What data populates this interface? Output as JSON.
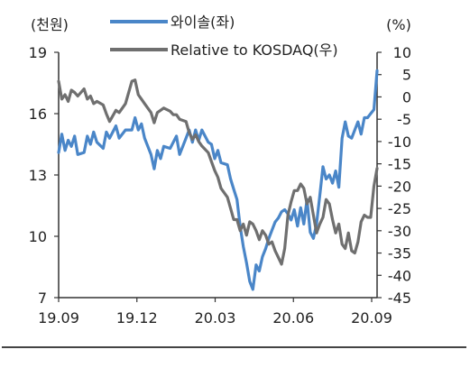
{
  "chart_data": {
    "type": "line",
    "left_unit": "(천원)",
    "right_unit": "(%)",
    "x_ticks": [
      "19.09",
      "19.12",
      "20.03",
      "20.06",
      "20.09"
    ],
    "y_left_ticks": [
      "7",
      "10",
      "13",
      "16",
      "19"
    ],
    "y_right_ticks": [
      "-45",
      "-40",
      "-35",
      "-30",
      "-25",
      "-20",
      "-15",
      "-10",
      "-5",
      "0",
      "5",
      "10"
    ],
    "ylim_left": [
      7,
      19
    ],
    "ylim_right": [
      -45,
      10
    ],
    "grid": false,
    "legend_position": "top",
    "series": [
      {
        "name": "와이솔(좌)",
        "axis": "left",
        "color": "#4a86c8",
        "points": [
          [
            0.0,
            14.1
          ],
          [
            0.01,
            15.0
          ],
          [
            0.02,
            14.2
          ],
          [
            0.03,
            14.7
          ],
          [
            0.04,
            14.4
          ],
          [
            0.05,
            14.9
          ],
          [
            0.06,
            14.0
          ],
          [
            0.08,
            14.1
          ],
          [
            0.09,
            14.9
          ],
          [
            0.1,
            14.5
          ],
          [
            0.11,
            15.1
          ],
          [
            0.12,
            14.6
          ],
          [
            0.14,
            14.3
          ],
          [
            0.15,
            15.1
          ],
          [
            0.16,
            14.8
          ],
          [
            0.18,
            15.4
          ],
          [
            0.19,
            14.8
          ],
          [
            0.21,
            15.2
          ],
          [
            0.23,
            15.2
          ],
          [
            0.24,
            15.8
          ],
          [
            0.25,
            15.2
          ],
          [
            0.26,
            15.5
          ],
          [
            0.27,
            14.8
          ],
          [
            0.29,
            14.0
          ],
          [
            0.3,
            13.3
          ],
          [
            0.31,
            14.2
          ],
          [
            0.32,
            13.8
          ],
          [
            0.33,
            14.4
          ],
          [
            0.35,
            14.3
          ],
          [
            0.36,
            14.6
          ],
          [
            0.37,
            14.9
          ],
          [
            0.38,
            14.0
          ],
          [
            0.4,
            14.8
          ],
          [
            0.41,
            15.2
          ],
          [
            0.42,
            14.6
          ],
          [
            0.43,
            15.2
          ],
          [
            0.44,
            14.7
          ],
          [
            0.45,
            15.2
          ],
          [
            0.47,
            14.6
          ],
          [
            0.48,
            14.5
          ],
          [
            0.49,
            13.8
          ],
          [
            0.5,
            14.2
          ],
          [
            0.51,
            13.6
          ],
          [
            0.53,
            13.5
          ],
          [
            0.54,
            12.8
          ],
          [
            0.55,
            12.3
          ],
          [
            0.56,
            11.8
          ],
          [
            0.57,
            10.5
          ],
          [
            0.58,
            9.5
          ],
          [
            0.59,
            8.7
          ],
          [
            0.6,
            7.8
          ],
          [
            0.61,
            7.4
          ],
          [
            0.62,
            8.6
          ],
          [
            0.63,
            8.3
          ],
          [
            0.64,
            9.0
          ],
          [
            0.65,
            9.4
          ],
          [
            0.66,
            9.9
          ],
          [
            0.67,
            10.3
          ],
          [
            0.68,
            10.7
          ],
          [
            0.69,
            10.9
          ],
          [
            0.7,
            11.2
          ],
          [
            0.71,
            11.3
          ],
          [
            0.72,
            11.1
          ],
          [
            0.73,
            10.8
          ],
          [
            0.74,
            11.3
          ],
          [
            0.75,
            10.5
          ],
          [
            0.76,
            11.4
          ],
          [
            0.77,
            10.6
          ],
          [
            0.78,
            11.8
          ],
          [
            0.79,
            10.2
          ],
          [
            0.8,
            9.9
          ],
          [
            0.81,
            10.6
          ],
          [
            0.82,
            12.0
          ],
          [
            0.83,
            13.4
          ],
          [
            0.84,
            12.8
          ],
          [
            0.85,
            13.0
          ],
          [
            0.86,
            12.6
          ],
          [
            0.87,
            13.2
          ],
          [
            0.88,
            12.4
          ],
          [
            0.89,
            14.8
          ],
          [
            0.9,
            15.6
          ],
          [
            0.91,
            14.9
          ],
          [
            0.92,
            14.8
          ],
          [
            0.93,
            15.2
          ],
          [
            0.94,
            15.6
          ],
          [
            0.95,
            15.0
          ],
          [
            0.96,
            15.8
          ],
          [
            0.97,
            15.8
          ],
          [
            0.98,
            16.0
          ],
          [
            0.99,
            16.2
          ],
          [
            1.0,
            18.1
          ]
        ]
      },
      {
        "name": "Relative to KOSDAQ(우)",
        "axis": "right",
        "color": "#6f6f6f",
        "points": [
          [
            0.0,
            3.5
          ],
          [
            0.01,
            -0.5
          ],
          [
            0.02,
            0.5
          ],
          [
            0.03,
            -1.0
          ],
          [
            0.04,
            1.5
          ],
          [
            0.05,
            1.0
          ],
          [
            0.06,
            0.2
          ],
          [
            0.08,
            1.8
          ],
          [
            0.09,
            -0.5
          ],
          [
            0.1,
            0.2
          ],
          [
            0.11,
            -1.5
          ],
          [
            0.12,
            -1.0
          ],
          [
            0.14,
            -1.8
          ],
          [
            0.15,
            -3.8
          ],
          [
            0.16,
            -5.5
          ],
          [
            0.18,
            -3.0
          ],
          [
            0.19,
            -3.5
          ],
          [
            0.21,
            -1.5
          ],
          [
            0.23,
            3.5
          ],
          [
            0.24,
            3.8
          ],
          [
            0.25,
            0.5
          ],
          [
            0.26,
            -0.5
          ],
          [
            0.27,
            -1.5
          ],
          [
            0.29,
            -3.5
          ],
          [
            0.3,
            -5.8
          ],
          [
            0.31,
            -3.5
          ],
          [
            0.32,
            -3.0
          ],
          [
            0.33,
            -2.5
          ],
          [
            0.35,
            -3.2
          ],
          [
            0.36,
            -4.0
          ],
          [
            0.37,
            -4.0
          ],
          [
            0.38,
            -5.0
          ],
          [
            0.4,
            -5.5
          ],
          [
            0.41,
            -8.0
          ],
          [
            0.42,
            -9.5
          ],
          [
            0.43,
            -8.5
          ],
          [
            0.44,
            -10.0
          ],
          [
            0.45,
            -11.0
          ],
          [
            0.47,
            -12.5
          ],
          [
            0.48,
            -14.5
          ],
          [
            0.49,
            -16.5
          ],
          [
            0.5,
            -18.0
          ],
          [
            0.51,
            -20.5
          ],
          [
            0.53,
            -22.5
          ],
          [
            0.54,
            -25.0
          ],
          [
            0.55,
            -27.5
          ],
          [
            0.56,
            -27.5
          ],
          [
            0.57,
            -30.0
          ],
          [
            0.58,
            -28.5
          ],
          [
            0.59,
            -31.0
          ],
          [
            0.6,
            -28.0
          ],
          [
            0.61,
            -28.5
          ],
          [
            0.62,
            -30.0
          ],
          [
            0.63,
            -32.0
          ],
          [
            0.64,
            -30.0
          ],
          [
            0.65,
            -31.0
          ],
          [
            0.66,
            -33.0
          ],
          [
            0.67,
            -32.5
          ],
          [
            0.68,
            -34.5
          ],
          [
            0.69,
            -36.0
          ],
          [
            0.7,
            -37.5
          ],
          [
            0.71,
            -34.0
          ],
          [
            0.72,
            -26.5
          ],
          [
            0.73,
            -23.5
          ],
          [
            0.74,
            -21.0
          ],
          [
            0.75,
            -21.0
          ],
          [
            0.76,
            -19.5
          ],
          [
            0.77,
            -20.5
          ],
          [
            0.78,
            -24.0
          ],
          [
            0.79,
            -22.5
          ],
          [
            0.8,
            -26.5
          ],
          [
            0.81,
            -30.5
          ],
          [
            0.82,
            -28.5
          ],
          [
            0.83,
            -27.0
          ],
          [
            0.84,
            -23.0
          ],
          [
            0.85,
            -24.0
          ],
          [
            0.86,
            -27.5
          ],
          [
            0.87,
            -30.5
          ],
          [
            0.88,
            -28.5
          ],
          [
            0.89,
            -33.0
          ],
          [
            0.9,
            -34.0
          ],
          [
            0.91,
            -30.5
          ],
          [
            0.92,
            -34.5
          ],
          [
            0.93,
            -35.0
          ],
          [
            0.94,
            -32.5
          ],
          [
            0.95,
            -28.0
          ],
          [
            0.96,
            -26.5
          ],
          [
            0.97,
            -27.0
          ],
          [
            0.98,
            -27.0
          ],
          [
            0.99,
            -20.0
          ],
          [
            1.0,
            -16.0
          ]
        ]
      }
    ]
  }
}
